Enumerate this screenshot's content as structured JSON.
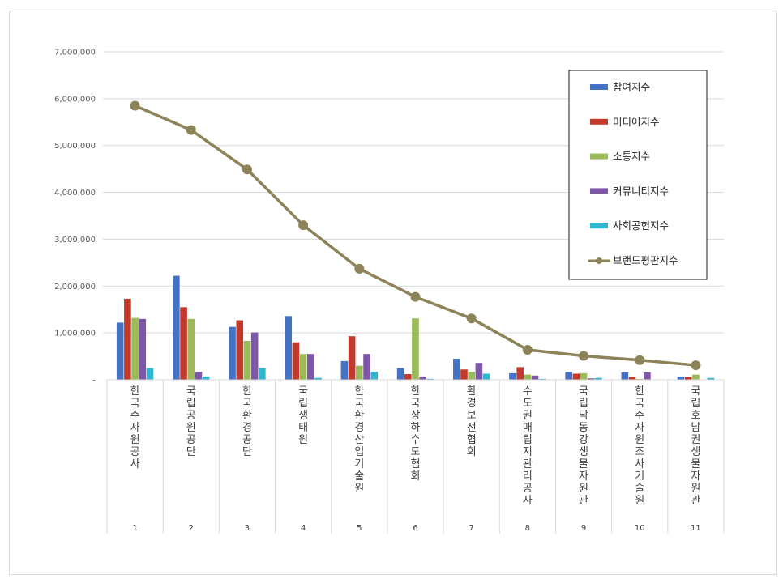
{
  "chart_data": {
    "type": "bar",
    "y_ticks": [
      "-",
      "1,000,000",
      "2,000,000",
      "3,000,000",
      "4,000,000",
      "5,000,000",
      "6,000,000",
      "7,000,000"
    ],
    "ylim": [
      0,
      7000000
    ],
    "category_numbers": [
      "1",
      "2",
      "3",
      "4",
      "5",
      "6",
      "7",
      "8",
      "9",
      "10",
      "11"
    ],
    "categories": [
      "한국수자원공사",
      "국립공원공단",
      "한국환경공단",
      "국립생태원",
      "한국환경산업기술원",
      "한국상하수도협회",
      "환경보전협회",
      "수도권매립지관리공사",
      "국립낙동강생물자원관",
      "한국수자원조사기술원",
      "국립호남권생물자원관"
    ],
    "series": [
      {
        "name": "참여지수",
        "color": "#4472c4",
        "values": [
          1220000,
          2220000,
          1130000,
          1360000,
          400000,
          250000,
          450000,
          140000,
          170000,
          160000,
          70000
        ]
      },
      {
        "name": "미디어지수",
        "color": "#c0392b",
        "values": [
          1730000,
          1550000,
          1270000,
          800000,
          930000,
          120000,
          220000,
          270000,
          130000,
          60000,
          60000
        ]
      },
      {
        "name": "소통지수",
        "color": "#9bbb59",
        "values": [
          1320000,
          1300000,
          830000,
          550000,
          300000,
          1310000,
          170000,
          110000,
          140000,
          20000,
          110000
        ]
      },
      {
        "name": "커뮤니티지수",
        "color": "#7e57a8",
        "values": [
          1300000,
          170000,
          1010000,
          550000,
          550000,
          70000,
          360000,
          90000,
          30000,
          160000,
          0
        ]
      },
      {
        "name": "사회공헌지수",
        "color": "#31b6d0",
        "values": [
          250000,
          70000,
          250000,
          40000,
          170000,
          20000,
          130000,
          20000,
          40000,
          0,
          40000
        ]
      }
    ],
    "line_series": {
      "name": "브랜드평판지수",
      "color": "#8c8358",
      "values": [
        5850000,
        5330000,
        4490000,
        3300000,
        2370000,
        1770000,
        1310000,
        640000,
        510000,
        420000,
        310000
      ]
    },
    "legend_position": "top-right",
    "grid": true
  }
}
